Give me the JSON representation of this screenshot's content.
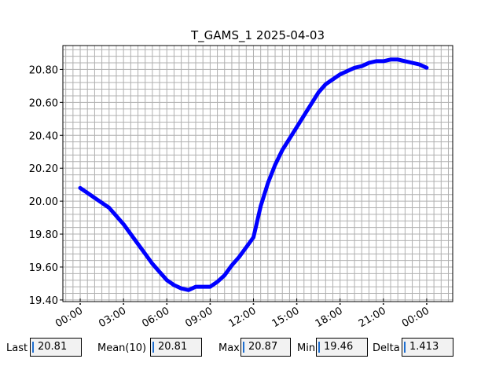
{
  "chart_data": {
    "type": "line",
    "title": "T_GAMS_1 2025-04-03",
    "xlabel": "",
    "ylabel": "",
    "x_unit": "hours",
    "xlim": [
      -1.2,
      25.8
    ],
    "ylim": [
      19.39,
      20.945
    ],
    "x_ticks": [
      {
        "value": 0,
        "label": "00:00"
      },
      {
        "value": 3,
        "label": "03:00"
      },
      {
        "value": 6,
        "label": "06:00"
      },
      {
        "value": 9,
        "label": "09:00"
      },
      {
        "value": 12,
        "label": "12:00"
      },
      {
        "value": 15,
        "label": "15:00"
      },
      {
        "value": 18,
        "label": "18:00"
      },
      {
        "value": 21,
        "label": "21:00"
      },
      {
        "value": 24,
        "label": "00:00"
      }
    ],
    "y_ticks": [
      {
        "value": 19.4,
        "label": "19.40"
      },
      {
        "value": 19.6,
        "label": "19.60"
      },
      {
        "value": 19.8,
        "label": "19.80"
      },
      {
        "value": 20.0,
        "label": "20.00"
      },
      {
        "value": 20.2,
        "label": "20.20"
      },
      {
        "value": 20.4,
        "label": "20.40"
      },
      {
        "value": 20.6,
        "label": "20.60"
      },
      {
        "value": 20.8,
        "label": "20.80"
      }
    ],
    "grid": true,
    "series": [
      {
        "color": "#0000ff",
        "x": [
          0.0,
          0.5,
          1.0,
          1.5,
          2.0,
          2.5,
          3.0,
          3.5,
          4.0,
          4.5,
          5.0,
          5.5,
          6.0,
          6.5,
          7.0,
          7.5,
          8.0,
          8.5,
          9.0,
          9.5,
          10.0,
          10.5,
          11.0,
          11.5,
          12.0,
          12.5,
          13.0,
          13.5,
          14.0,
          14.5,
          15.0,
          15.5,
          16.0,
          16.5,
          17.0,
          17.5,
          18.0,
          18.5,
          19.0,
          19.5,
          20.0,
          20.5,
          21.0,
          21.5,
          22.0,
          22.5,
          23.0,
          23.5,
          24.0
        ],
        "values": [
          20.08,
          20.05,
          20.02,
          19.99,
          19.96,
          19.91,
          19.86,
          19.8,
          19.74,
          19.68,
          19.62,
          19.57,
          19.52,
          19.49,
          19.47,
          19.46,
          19.48,
          19.48,
          19.48,
          19.51,
          19.55,
          19.61,
          19.66,
          19.72,
          19.78,
          19.97,
          20.11,
          20.22,
          20.31,
          20.38,
          20.45,
          20.52,
          20.59,
          20.66,
          20.71,
          20.74,
          20.77,
          20.79,
          20.81,
          20.82,
          20.84,
          20.85,
          20.85,
          20.86,
          20.86,
          20.85,
          20.84,
          20.83,
          20.81
        ]
      }
    ]
  },
  "stats": [
    {
      "label": "Last",
      "value": "20.81"
    },
    {
      "label": "Mean(10)",
      "value": "20.81"
    },
    {
      "label": "Max",
      "value": "20.87"
    },
    {
      "label": "Min",
      "value": "19.46"
    },
    {
      "label": "Delta",
      "value": "1.413"
    }
  ]
}
